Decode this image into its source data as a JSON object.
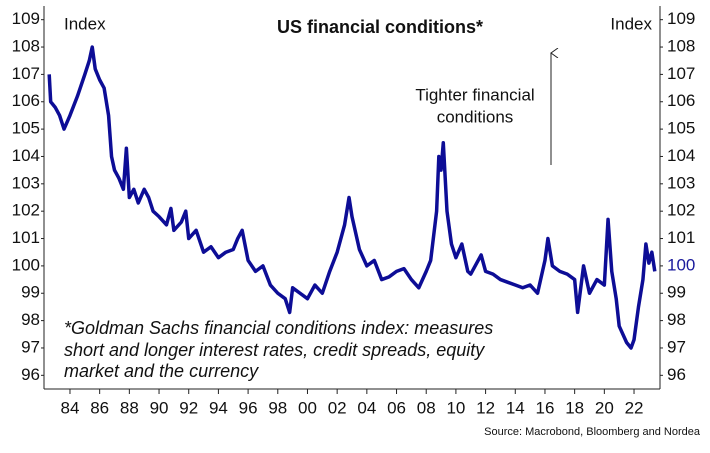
{
  "chart_data": {
    "type": "line",
    "title": "US financial conditions*",
    "y_label": "Index",
    "y2_label": "Index",
    "annotation": [
      "Tighter financial",
      "conditions"
    ],
    "footnote": [
      "*Goldman Sachs financial conditions index: measures",
      "short and longer interest rates, credit spreads, equity",
      "market and the currency"
    ],
    "source": "Source: Macrobond, Bloomberg and Nordea",
    "xlim": [
      1982.25,
      2023.75
    ],
    "xticks": [
      {
        "value": 1984,
        "label": "84"
      },
      {
        "value": 1986,
        "label": "86"
      },
      {
        "value": 1988,
        "label": "88"
      },
      {
        "value": 1990,
        "label": "90"
      },
      {
        "value": 1992,
        "label": "92"
      },
      {
        "value": 1994,
        "label": "94"
      },
      {
        "value": 1996,
        "label": "96"
      },
      {
        "value": 1998,
        "label": "98"
      },
      {
        "value": 2000,
        "label": "00"
      },
      {
        "value": 2002,
        "label": "02"
      },
      {
        "value": 2004,
        "label": "04"
      },
      {
        "value": 2006,
        "label": "06"
      },
      {
        "value": 2008,
        "label": "08"
      },
      {
        "value": 2010,
        "label": "10"
      },
      {
        "value": 2012,
        "label": "12"
      },
      {
        "value": 2014,
        "label": "14"
      },
      {
        "value": 2016,
        "label": "16"
      },
      {
        "value": 2018,
        "label": "18"
      },
      {
        "value": 2020,
        "label": "20"
      },
      {
        "value": 2022,
        "label": "22"
      }
    ],
    "ylim": [
      95.5,
      109.5
    ],
    "yticks": [
      96,
      97,
      98,
      99,
      100,
      101,
      102,
      103,
      104,
      105,
      106,
      107,
      108,
      109
    ],
    "y2ticks": [
      96,
      97,
      98,
      99,
      100,
      101,
      102,
      103,
      104,
      105,
      106,
      107,
      108,
      109
    ],
    "y2_highlight": 100,
    "y2_highlight_color": "#1a1a9c",
    "x": [
      1982.6,
      1982.7,
      1983,
      1983.3,
      1983.6,
      1984,
      1984.5,
      1985,
      1985.3,
      1985.5,
      1985.7,
      1986,
      1986.3,
      1986.6,
      1986.8,
      1987,
      1987.3,
      1987.6,
      1987.8,
      1988,
      1988.3,
      1988.6,
      1989,
      1989.3,
      1989.6,
      1990,
      1990.5,
      1990.8,
      1991,
      1991.5,
      1991.8,
      1992,
      1992.5,
      1993,
      1993.5,
      1994,
      1994.5,
      1995,
      1995.3,
      1995.6,
      1996,
      1996.5,
      1997,
      1997.5,
      1998,
      1998.5,
      1998.8,
      1999,
      1999.5,
      2000,
      2000.5,
      2001,
      2001.5,
      2002,
      2002.5,
      2002.8,
      2003,
      2003.5,
      2004,
      2004.5,
      2005,
      2005.5,
      2006,
      2006.5,
      2007,
      2007.5,
      2008,
      2008.3,
      2008.7,
      2008.85,
      2009,
      2009.15,
      2009.4,
      2009.7,
      2010,
      2010.4,
      2010.8,
      2011,
      2011.7,
      2012,
      2012.5,
      2013,
      2013.5,
      2014,
      2014.5,
      2015,
      2015.5,
      2016,
      2016.2,
      2016.5,
      2017,
      2017.5,
      2018,
      2018.2,
      2018.6,
      2019,
      2019.5,
      2020,
      2020.25,
      2020.5,
      2020.8,
      2021,
      2021.5,
      2021.8,
      2022,
      2022.3,
      2022.6,
      2022.8,
      2023,
      2023.2,
      2023.4
    ],
    "series": [
      {
        "name": "Goldman Sachs financial conditions index",
        "color": "#0d0d96",
        "values": [
          107,
          106,
          105.8,
          105.5,
          105,
          105.5,
          106.2,
          107,
          107.5,
          108,
          107.2,
          106.8,
          106.5,
          105.5,
          104,
          103.5,
          103.2,
          102.8,
          104.3,
          102.5,
          102.8,
          102.3,
          102.8,
          102.5,
          102,
          101.8,
          101.5,
          102.1,
          101.3,
          101.6,
          102,
          101,
          101.3,
          100.5,
          100.7,
          100.3,
          100.5,
          100.6,
          101,
          101.3,
          100.2,
          99.8,
          100,
          99.3,
          99,
          98.8,
          98.3,
          99.2,
          99,
          98.8,
          99.3,
          99,
          99.8,
          100.5,
          101.5,
          102.5,
          101.8,
          100.6,
          100,
          100.2,
          99.5,
          99.6,
          99.8,
          99.9,
          99.5,
          99.2,
          99.8,
          100.2,
          102,
          104,
          103.5,
          104.5,
          102,
          100.8,
          100.3,
          100.8,
          99.8,
          99.7,
          100.4,
          99.8,
          99.7,
          99.5,
          99.4,
          99.3,
          99.2,
          99.3,
          99,
          100.2,
          101,
          100,
          99.8,
          99.7,
          99.5,
          98.3,
          100,
          99,
          99.5,
          99.3,
          101.7,
          99.8,
          98.8,
          97.8,
          97.2,
          97,
          97.3,
          98.5,
          99.5,
          100.8,
          100.1,
          100.5,
          99.8
        ]
      }
    ]
  }
}
